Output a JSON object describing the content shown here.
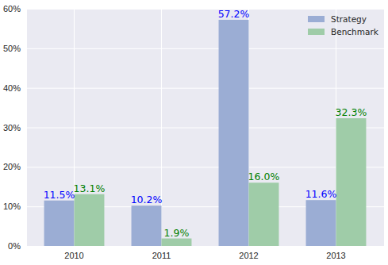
{
  "chart_data": {
    "type": "bar",
    "categories": [
      "2010",
      "2011",
      "2012",
      "2013"
    ],
    "series": [
      {
        "name": "Strategy",
        "color": "#9badd4",
        "values": [
          11.5,
          10.2,
          57.2,
          11.6
        ],
        "value_labels": [
          "11.5%",
          "10.2%",
          "57.2%",
          "11.6%"
        ]
      },
      {
        "name": "Benchmark",
        "color": "#9fcca8",
        "values": [
          13.1,
          1.9,
          16.0,
          32.3
        ],
        "value_labels": [
          "13.1%",
          "1.9%",
          "16.0%",
          "32.3%"
        ]
      }
    ],
    "ylim": [
      0,
      60
    ],
    "yticks": [
      {
        "value": 0,
        "label": "0%"
      },
      {
        "value": 10,
        "label": "10%"
      },
      {
        "value": 20,
        "label": "20%"
      },
      {
        "value": 30,
        "label": "30%"
      },
      {
        "value": 40,
        "label": "40%"
      },
      {
        "value": 50,
        "label": "50%"
      },
      {
        "value": 60,
        "label": "60%"
      }
    ],
    "grid": true,
    "legend": "upper right",
    "data_labels": true
  }
}
